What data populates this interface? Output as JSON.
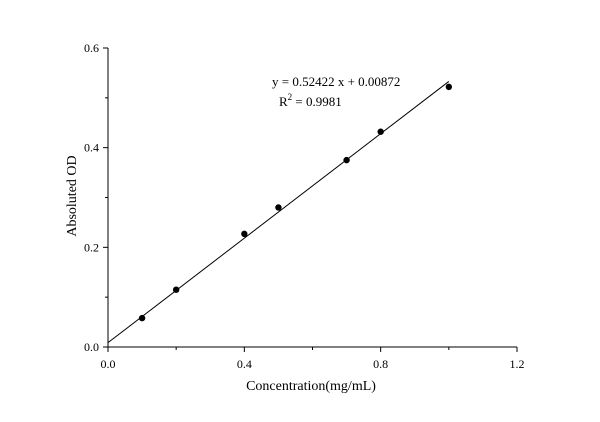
{
  "chart_data": {
    "type": "scatter",
    "title": "",
    "xlabel": "Concentration(mg/mL)",
    "ylabel": "Absoluted OD",
    "xlim": [
      0.0,
      1.2
    ],
    "ylim": [
      0.0,
      0.6
    ],
    "xticks": [
      0.0,
      0.4,
      0.8,
      1.2
    ],
    "xtick_labels": [
      "0.0",
      "0.4",
      "0.8",
      "1.2"
    ],
    "yticks": [
      0.0,
      0.2,
      0.4,
      0.6
    ],
    "ytick_labels": [
      "0.0",
      "0.2",
      "0.4",
      "0.6"
    ],
    "grid": false,
    "series": [
      {
        "x": [
          0.1,
          0.2,
          0.4,
          0.5,
          0.7,
          0.8,
          1.0
        ],
        "y": [
          0.058,
          0.115,
          0.227,
          0.28,
          0.375,
          0.432,
          0.522
        ]
      }
    ],
    "fit_line": {
      "slope": 0.52422,
      "intercept": 0.00872,
      "x_range": [
        0.0,
        1.0
      ]
    },
    "annotations": {
      "equation": "y = 0.52422 x + 0.00872",
      "r2_prefix": "R",
      "r2_sup": "2",
      "r2_value": " = 0.9981"
    }
  }
}
